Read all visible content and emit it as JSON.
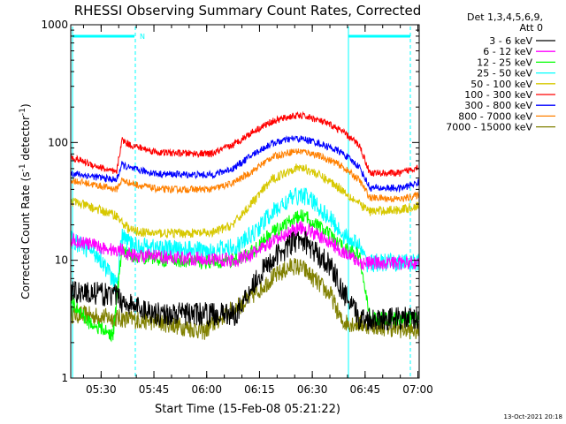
{
  "chart_data": {
    "type": "line",
    "title": "RHESSI Observing Summary Count Rates, Corrected",
    "xlabel": "Start Time (15-Feb-08 05:21:22)",
    "ylabel_main": "Corrected Count Rate (s",
    "ylabel_sup1": "-1",
    "ylabel_mid": " detector",
    "ylabel_sup2": "-1",
    "ylabel_end": ")",
    "yscale": "log",
    "ylim": [
      1,
      1000
    ],
    "xlim_minutes": [
      0,
      99
    ],
    "y_ticks": [
      {
        "value": 1000,
        "label": "1000"
      },
      {
        "value": 100,
        "label": "100"
      },
      {
        "value": 10,
        "label": "10"
      },
      {
        "value": 1,
        "label": "1"
      }
    ],
    "x_ticks": [
      {
        "value": 8.63,
        "label": "05:30"
      },
      {
        "value": 23.63,
        "label": "05:45"
      },
      {
        "value": 38.63,
        "label": "06:00"
      },
      {
        "value": 53.63,
        "label": "06:15"
      },
      {
        "value": 68.63,
        "label": "06:30"
      },
      {
        "value": 83.63,
        "label": "06:45"
      },
      {
        "value": 98.63,
        "label": "07:00"
      }
    ],
    "legend_header": [
      "Det 1,3,4,5,6,9,",
      "Att 0"
    ],
    "legend_position": "top-right, outside plot",
    "attenuator_label": "N",
    "timestamp": "13-Oct-2021 20:18",
    "series": [
      {
        "name": "3 - 6 keV",
        "color": "#000000",
        "noise": 0.1,
        "points": [
          [
            0,
            5.5
          ],
          [
            13,
            5
          ],
          [
            14.5,
            4.5
          ],
          [
            17,
            4.2
          ],
          [
            25,
            3.5
          ],
          [
            47,
            3.5
          ],
          [
            52,
            6.5
          ],
          [
            57,
            10
          ],
          [
            63,
            14
          ],
          [
            66,
            15
          ],
          [
            69,
            12
          ],
          [
            74,
            9
          ],
          [
            77,
            5.5
          ],
          [
            82,
            3.2
          ],
          [
            99,
            3.2
          ]
        ]
      },
      {
        "name": "6 - 12 keV",
        "color": "#ff00ff",
        "noise": 0.06,
        "points": [
          [
            0,
            15
          ],
          [
            13,
            12
          ],
          [
            14.5,
            12.5
          ],
          [
            17,
            11
          ],
          [
            47,
            10
          ],
          [
            52,
            11.5
          ],
          [
            57,
            14
          ],
          [
            63,
            18
          ],
          [
            66,
            19
          ],
          [
            69,
            17
          ],
          [
            74,
            14
          ],
          [
            77,
            12
          ],
          [
            82,
            9.5
          ],
          [
            84,
            9.5
          ],
          [
            99,
            9.5
          ]
        ]
      },
      {
        "name": "12 - 25 keV",
        "color": "#00ff00",
        "noise": 0.06,
        "points": [
          [
            0,
            4.5
          ],
          [
            5,
            3
          ],
          [
            12,
            2.3
          ],
          [
            14.5,
            12
          ],
          [
            17,
            11
          ],
          [
            28,
            10
          ],
          [
            40,
            9.5
          ],
          [
            47,
            10
          ],
          [
            52,
            12
          ],
          [
            57,
            17
          ],
          [
            63,
            22
          ],
          [
            66,
            24
          ],
          [
            69,
            21
          ],
          [
            74,
            16
          ],
          [
            77,
            13
          ],
          [
            82,
            11
          ],
          [
            85,
            3.2
          ],
          [
            99,
            3.2
          ]
        ]
      },
      {
        "name": "25 - 50 keV",
        "color": "#00ffff",
        "noise": 0.08,
        "points": [
          [
            0,
            15
          ],
          [
            8,
            11
          ],
          [
            13,
            6
          ],
          [
            14.5,
            16
          ],
          [
            17,
            13.5
          ],
          [
            28,
            12.5
          ],
          [
            40,
            12
          ],
          [
            47,
            13
          ],
          [
            52,
            17
          ],
          [
            57,
            25
          ],
          [
            63,
            34
          ],
          [
            66,
            36
          ],
          [
            69,
            31
          ],
          [
            74,
            22
          ],
          [
            77,
            17
          ],
          [
            82,
            13
          ],
          [
            84,
            9.5
          ],
          [
            99,
            9.5
          ]
        ]
      },
      {
        "name": "50 - 100 keV",
        "color": "#d7c800",
        "noise": 0.04,
        "points": [
          [
            0,
            32
          ],
          [
            13,
            24
          ],
          [
            14.5,
            21
          ],
          [
            17,
            18
          ],
          [
            22,
            17
          ],
          [
            40,
            17
          ],
          [
            46,
            20
          ],
          [
            52,
            32
          ],
          [
            57,
            48
          ],
          [
            63,
            60
          ],
          [
            66,
            61
          ],
          [
            69,
            56
          ],
          [
            74,
            46
          ],
          [
            77,
            40
          ],
          [
            82,
            30
          ],
          [
            85,
            26
          ],
          [
            94,
            27
          ],
          [
            99,
            29
          ]
        ]
      },
      {
        "name": "100 - 300 keV",
        "color": "#ff0000",
        "noise": 0.03,
        "points": [
          [
            0,
            75
          ],
          [
            13,
            55
          ],
          [
            14.5,
            105
          ],
          [
            17,
            95
          ],
          [
            25,
            82
          ],
          [
            40,
            80
          ],
          [
            46,
            95
          ],
          [
            52,
            125
          ],
          [
            57,
            150
          ],
          [
            63,
            168
          ],
          [
            66,
            168
          ],
          [
            69,
            160
          ],
          [
            74,
            140
          ],
          [
            77,
            125
          ],
          [
            82,
            95
          ],
          [
            85,
            55
          ],
          [
            94,
            55
          ],
          [
            99,
            63
          ]
        ]
      },
      {
        "name": "300 - 800 keV",
        "color": "#0000ff",
        "noise": 0.03,
        "points": [
          [
            0,
            55
          ],
          [
            13,
            48
          ],
          [
            14.5,
            65
          ],
          [
            17,
            60
          ],
          [
            25,
            54
          ],
          [
            40,
            53
          ],
          [
            46,
            60
          ],
          [
            52,
            80
          ],
          [
            57,
            98
          ],
          [
            63,
            108
          ],
          [
            66,
            107
          ],
          [
            69,
            102
          ],
          [
            74,
            90
          ],
          [
            77,
            82
          ],
          [
            82,
            62
          ],
          [
            85,
            41
          ],
          [
            94,
            41
          ],
          [
            99,
            46
          ]
        ]
      },
      {
        "name": "800 - 7000 keV",
        "color": "#ff8000",
        "noise": 0.03,
        "points": [
          [
            0,
            48
          ],
          [
            13,
            40
          ],
          [
            14.5,
            48
          ],
          [
            17,
            45
          ],
          [
            25,
            40
          ],
          [
            40,
            40
          ],
          [
            46,
            45
          ],
          [
            52,
            58
          ],
          [
            57,
            75
          ],
          [
            63,
            84
          ],
          [
            66,
            84
          ],
          [
            69,
            80
          ],
          [
            74,
            70
          ],
          [
            77,
            63
          ],
          [
            82,
            48
          ],
          [
            85,
            34
          ],
          [
            94,
            33
          ],
          [
            99,
            36
          ]
        ]
      },
      {
        "name": "7000 - 15000 keV",
        "color": "#808000",
        "noise": 0.08,
        "points": [
          [
            0,
            3.5
          ],
          [
            25,
            3
          ],
          [
            38,
            2.5
          ],
          [
            44,
            3.5
          ],
          [
            50,
            4.5
          ],
          [
            57,
            7
          ],
          [
            63,
            9
          ],
          [
            66,
            8.5
          ],
          [
            69,
            7
          ],
          [
            74,
            5
          ],
          [
            77,
            3
          ],
          [
            99,
            2.5
          ]
        ]
      }
    ]
  }
}
